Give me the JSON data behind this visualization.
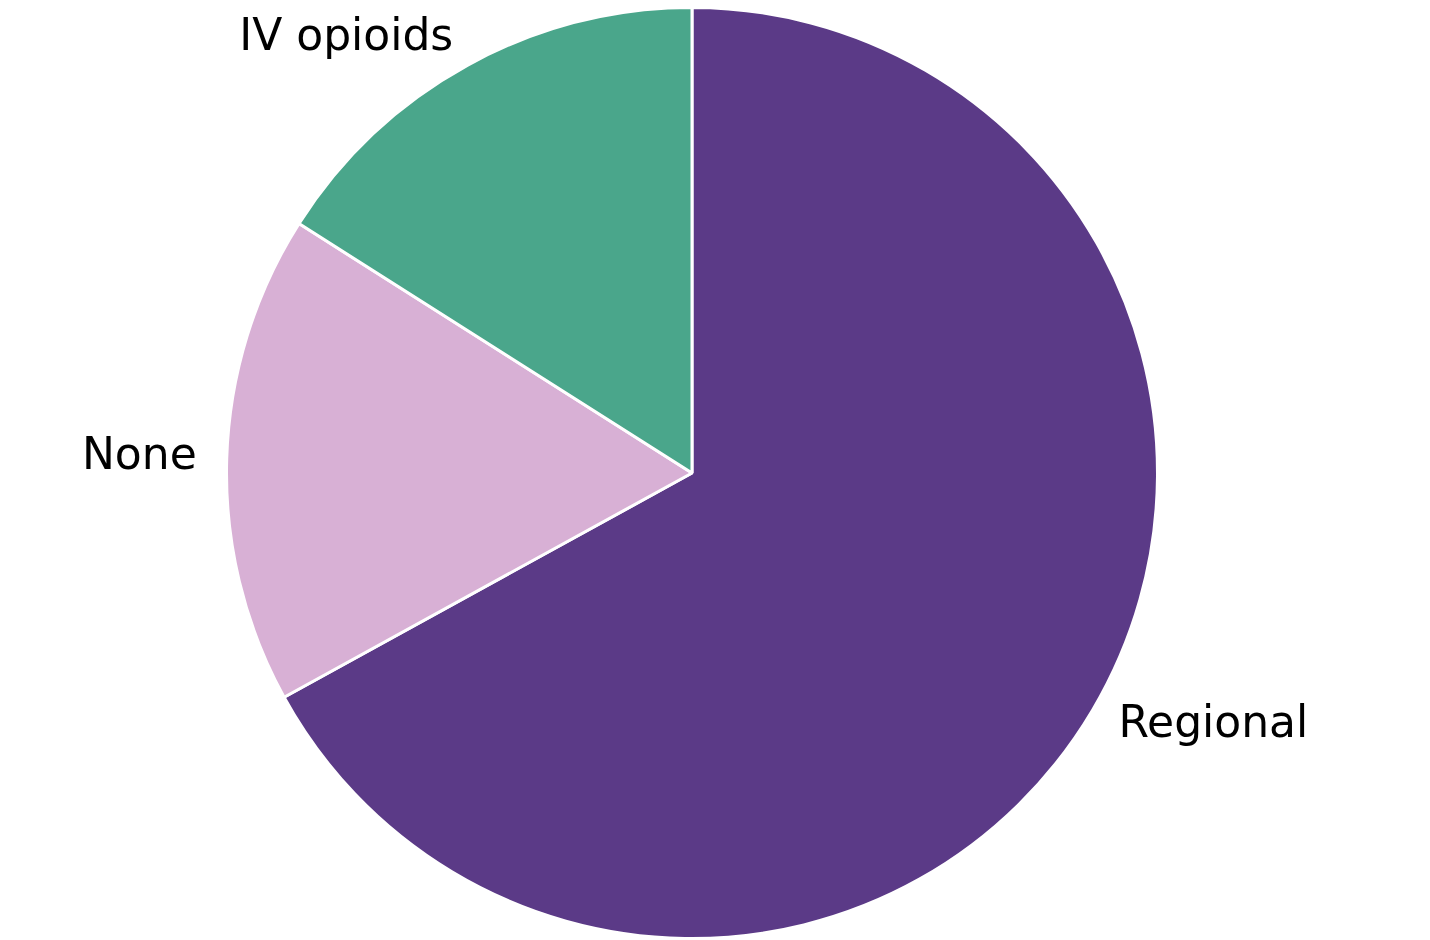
{
  "chart_data": {
    "type": "pie",
    "categories": [
      "Regional",
      "None",
      "IV opioids"
    ],
    "values": [
      67,
      17,
      16
    ],
    "colors": [
      "#5b3a87",
      "#d8b0d5",
      "#4aa68b"
    ],
    "legend": false
  }
}
